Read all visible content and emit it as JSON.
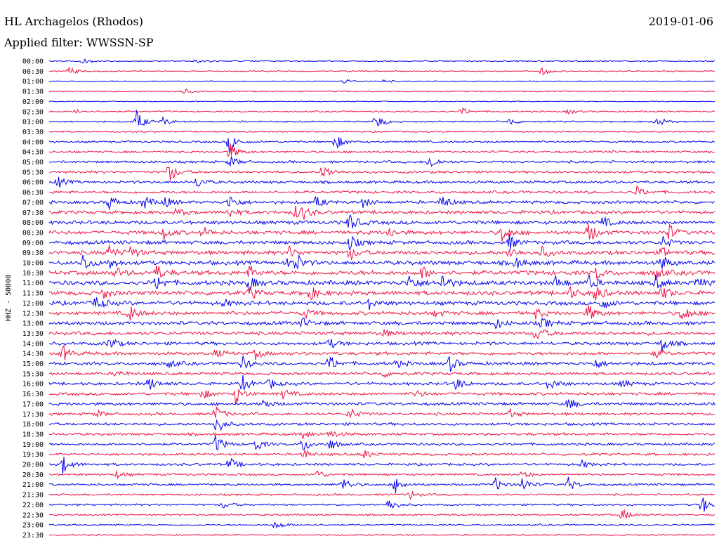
{
  "header": {
    "station": "HL Archagelos (Rhodos)",
    "date": "2019-01-06",
    "filter": "Applied filter: WWSSN-SP"
  },
  "chart_data": {
    "type": "line",
    "subtype": "helicorder",
    "ylabel": "HHZ - 50000",
    "xlabel": "",
    "grid": false,
    "legend": "none",
    "colors": [
      "#0000ee",
      "#ee1144"
    ],
    "rows": [
      "00:00",
      "00:30",
      "01:00",
      "01:30",
      "02:00",
      "02:30",
      "03:00",
      "03:30",
      "04:00",
      "04:30",
      "05:00",
      "05:30",
      "06:00",
      "06:30",
      "07:00",
      "07:30",
      "08:00",
      "08:30",
      "09:00",
      "09:30",
      "10:00",
      "10:30",
      "11:00",
      "11:30",
      "12:00",
      "12:30",
      "13:00",
      "13:30",
      "14:00",
      "14:30",
      "15:00",
      "15:30",
      "16:00",
      "16:30",
      "17:00",
      "17:30",
      "18:00",
      "18:30",
      "19:00",
      "19:30",
      "20:00",
      "20:30",
      "21:00",
      "21:30",
      "22:00",
      "22:30",
      "23:00",
      "23:30"
    ],
    "row_noise": [
      1,
      1,
      0.8,
      1,
      0.8,
      1.2,
      1.3,
      1.2,
      1.6,
      1.8,
      2,
      2,
      2.2,
      2.2,
      2.5,
      2.8,
      3,
      3,
      3,
      3.2,
      3.4,
      3.6,
      3.6,
      3.4,
      3.2,
      3,
      3,
      2.8,
      2.6,
      2.6,
      2.6,
      2.4,
      2.4,
      2.4,
      2.4,
      2.2,
      2.2,
      2.2,
      2,
      2,
      2,
      1.8,
      1.8,
      1.6,
      1.5,
      1.4,
      1.3,
      1.2
    ],
    "events": [
      {
        "row": 0,
        "t": 0.05,
        "amp": 4
      },
      {
        "row": 0,
        "t": 0.22,
        "amp": 3
      },
      {
        "row": 1,
        "t": 0.03,
        "amp": 6
      },
      {
        "row": 1,
        "t": 0.74,
        "amp": 6
      },
      {
        "row": 2,
        "t": 0.44,
        "amp": 5
      },
      {
        "row": 2,
        "t": 0.5,
        "amp": 3
      },
      {
        "row": 3,
        "t": 0.2,
        "amp": 5
      },
      {
        "row": 5,
        "t": 0.04,
        "amp": 5
      },
      {
        "row": 5,
        "t": 0.62,
        "amp": 6
      },
      {
        "row": 5,
        "t": 0.78,
        "amp": 4
      },
      {
        "row": 6,
        "t": 0.13,
        "amp": 18
      },
      {
        "row": 6,
        "t": 0.17,
        "amp": 6
      },
      {
        "row": 6,
        "t": 0.49,
        "amp": 12
      },
      {
        "row": 6,
        "t": 0.69,
        "amp": 7
      },
      {
        "row": 6,
        "t": 0.91,
        "amp": 10
      },
      {
        "row": 8,
        "t": 0.27,
        "amp": 16
      },
      {
        "row": 8,
        "t": 0.43,
        "amp": 12
      },
      {
        "row": 9,
        "t": 0.27,
        "amp": 14
      },
      {
        "row": 10,
        "t": 0.27,
        "amp": 10
      },
      {
        "row": 10,
        "t": 0.57,
        "amp": 12
      },
      {
        "row": 11,
        "t": 0.18,
        "amp": 16
      },
      {
        "row": 11,
        "t": 0.41,
        "amp": 14
      },
      {
        "row": 12,
        "t": 0.01,
        "amp": 10
      },
      {
        "row": 12,
        "t": 0.22,
        "amp": 10
      },
      {
        "row": 13,
        "t": 0.88,
        "amp": 10
      },
      {
        "row": 14,
        "t": 0.09,
        "amp": 10
      },
      {
        "row": 14,
        "t": 0.14,
        "amp": 12
      },
      {
        "row": 14,
        "t": 0.17,
        "amp": 10
      },
      {
        "row": 14,
        "t": 0.27,
        "amp": 12
      },
      {
        "row": 14,
        "t": 0.4,
        "amp": 10
      },
      {
        "row": 14,
        "t": 0.47,
        "amp": 8
      },
      {
        "row": 14,
        "t": 0.59,
        "amp": 12
      },
      {
        "row": 15,
        "t": 0.19,
        "amp": 8
      },
      {
        "row": 15,
        "t": 0.27,
        "amp": 8
      },
      {
        "row": 15,
        "t": 0.37,
        "amp": 10
      },
      {
        "row": 15,
        "t": 0.38,
        "amp": 8
      },
      {
        "row": 16,
        "t": 0.45,
        "amp": 16
      },
      {
        "row": 16,
        "t": 0.83,
        "amp": 8
      },
      {
        "row": 17,
        "t": 0.17,
        "amp": 12
      },
      {
        "row": 17,
        "t": 0.23,
        "amp": 8
      },
      {
        "row": 17,
        "t": 0.51,
        "amp": 8
      },
      {
        "row": 17,
        "t": 0.68,
        "amp": 14
      },
      {
        "row": 17,
        "t": 0.81,
        "amp": 16
      },
      {
        "row": 17,
        "t": 0.93,
        "amp": 12
      },
      {
        "row": 18,
        "t": 0.45,
        "amp": 12
      },
      {
        "row": 18,
        "t": 0.69,
        "amp": 12
      },
      {
        "row": 18,
        "t": 0.92,
        "amp": 10
      },
      {
        "row": 19,
        "t": 0.09,
        "amp": 10
      },
      {
        "row": 19,
        "t": 0.12,
        "amp": 12
      },
      {
        "row": 19,
        "t": 0.36,
        "amp": 8
      },
      {
        "row": 19,
        "t": 0.45,
        "amp": 12
      },
      {
        "row": 19,
        "t": 0.69,
        "amp": 10
      },
      {
        "row": 19,
        "t": 0.74,
        "amp": 8
      },
      {
        "row": 19,
        "t": 0.92,
        "amp": 8
      },
      {
        "row": 20,
        "t": 0.05,
        "amp": 14
      },
      {
        "row": 20,
        "t": 0.09,
        "amp": 8
      },
      {
        "row": 20,
        "t": 0.36,
        "amp": 12
      },
      {
        "row": 20,
        "t": 0.37,
        "amp": 10
      },
      {
        "row": 20,
        "t": 0.7,
        "amp": 10
      },
      {
        "row": 20,
        "t": 0.92,
        "amp": 10
      },
      {
        "row": 21,
        "t": 0.1,
        "amp": 8
      },
      {
        "row": 21,
        "t": 0.16,
        "amp": 12
      },
      {
        "row": 21,
        "t": 0.3,
        "amp": 10
      },
      {
        "row": 21,
        "t": 0.56,
        "amp": 10
      },
      {
        "row": 21,
        "t": 0.82,
        "amp": 10
      },
      {
        "row": 21,
        "t": 0.91,
        "amp": 10
      },
      {
        "row": 22,
        "t": 0.16,
        "amp": 12
      },
      {
        "row": 22,
        "t": 0.3,
        "amp": 10
      },
      {
        "row": 22,
        "t": 0.54,
        "amp": 14
      },
      {
        "row": 22,
        "t": 0.59,
        "amp": 14
      },
      {
        "row": 22,
        "t": 0.76,
        "amp": 10
      },
      {
        "row": 22,
        "t": 0.81,
        "amp": 10
      },
      {
        "row": 22,
        "t": 0.91,
        "amp": 10
      },
      {
        "row": 22,
        "t": 0.97,
        "amp": 10
      },
      {
        "row": 23,
        "t": 0.08,
        "amp": 8
      },
      {
        "row": 23,
        "t": 0.3,
        "amp": 10
      },
      {
        "row": 23,
        "t": 0.39,
        "amp": 12
      },
      {
        "row": 23,
        "t": 0.78,
        "amp": 10
      },
      {
        "row": 23,
        "t": 0.82,
        "amp": 14
      },
      {
        "row": 23,
        "t": 0.92,
        "amp": 10
      },
      {
        "row": 24,
        "t": 0.07,
        "amp": 12
      },
      {
        "row": 24,
        "t": 0.26,
        "amp": 6
      },
      {
        "row": 24,
        "t": 0.48,
        "amp": 8
      },
      {
        "row": 24,
        "t": 0.83,
        "amp": 10
      },
      {
        "row": 25,
        "t": 0.12,
        "amp": 12
      },
      {
        "row": 25,
        "t": 0.38,
        "amp": 10
      },
      {
        "row": 25,
        "t": 0.58,
        "amp": 6
      },
      {
        "row": 25,
        "t": 0.73,
        "amp": 8
      },
      {
        "row": 25,
        "t": 0.81,
        "amp": 12
      },
      {
        "row": 25,
        "t": 0.95,
        "amp": 14
      },
      {
        "row": 26,
        "t": 0.38,
        "amp": 8
      },
      {
        "row": 26,
        "t": 0.67,
        "amp": 8
      },
      {
        "row": 26,
        "t": 0.74,
        "amp": 8
      },
      {
        "row": 27,
        "t": 0.5,
        "amp": 6
      },
      {
        "row": 27,
        "t": 0.73,
        "amp": 14
      },
      {
        "row": 28,
        "t": 0.09,
        "amp": 10
      },
      {
        "row": 28,
        "t": 0.42,
        "amp": 8
      },
      {
        "row": 28,
        "t": 0.92,
        "amp": 12
      },
      {
        "row": 29,
        "t": 0.02,
        "amp": 12
      },
      {
        "row": 29,
        "t": 0.25,
        "amp": 6
      },
      {
        "row": 29,
        "t": 0.31,
        "amp": 8
      },
      {
        "row": 29,
        "t": 0.91,
        "amp": 8
      },
      {
        "row": 30,
        "t": 0.18,
        "amp": 6
      },
      {
        "row": 30,
        "t": 0.29,
        "amp": 10
      },
      {
        "row": 30,
        "t": 0.42,
        "amp": 12
      },
      {
        "row": 30,
        "t": 0.52,
        "amp": 6
      },
      {
        "row": 30,
        "t": 0.6,
        "amp": 14
      },
      {
        "row": 30,
        "t": 0.82,
        "amp": 8
      },
      {
        "row": 31,
        "t": 0.1,
        "amp": 6
      },
      {
        "row": 31,
        "t": 0.5,
        "amp": 6
      },
      {
        "row": 32,
        "t": 0.15,
        "amp": 10
      },
      {
        "row": 32,
        "t": 0.29,
        "amp": 12
      },
      {
        "row": 32,
        "t": 0.33,
        "amp": 8
      },
      {
        "row": 32,
        "t": 0.61,
        "amp": 10
      },
      {
        "row": 32,
        "t": 0.75,
        "amp": 12
      },
      {
        "row": 32,
        "t": 0.86,
        "amp": 6
      },
      {
        "row": 33,
        "t": 0.23,
        "amp": 8
      },
      {
        "row": 33,
        "t": 0.28,
        "amp": 14
      },
      {
        "row": 33,
        "t": 0.35,
        "amp": 8
      },
      {
        "row": 33,
        "t": 0.55,
        "amp": 6
      },
      {
        "row": 34,
        "t": 0.32,
        "amp": 8
      },
      {
        "row": 34,
        "t": 0.78,
        "amp": 10
      },
      {
        "row": 35,
        "t": 0.07,
        "amp": 6
      },
      {
        "row": 35,
        "t": 0.25,
        "amp": 12
      },
      {
        "row": 35,
        "t": 0.45,
        "amp": 10
      },
      {
        "row": 35,
        "t": 0.69,
        "amp": 8
      },
      {
        "row": 36,
        "t": 0.25,
        "amp": 16
      },
      {
        "row": 37,
        "t": 0.38,
        "amp": 8
      },
      {
        "row": 37,
        "t": 0.42,
        "amp": 8
      },
      {
        "row": 38,
        "t": 0.25,
        "amp": 14
      },
      {
        "row": 38,
        "t": 0.31,
        "amp": 10
      },
      {
        "row": 38,
        "t": 0.38,
        "amp": 12
      },
      {
        "row": 38,
        "t": 0.42,
        "amp": 10
      },
      {
        "row": 39,
        "t": 0.38,
        "amp": 8
      },
      {
        "row": 39,
        "t": 0.47,
        "amp": 8
      },
      {
        "row": 40,
        "t": 0.02,
        "amp": 14
      },
      {
        "row": 40,
        "t": 0.27,
        "amp": 10
      },
      {
        "row": 40,
        "t": 0.8,
        "amp": 6
      },
      {
        "row": 41,
        "t": 0.1,
        "amp": 6
      },
      {
        "row": 41,
        "t": 0.4,
        "amp": 8
      },
      {
        "row": 41,
        "t": 0.71,
        "amp": 6
      },
      {
        "row": 42,
        "t": 0.44,
        "amp": 12
      },
      {
        "row": 42,
        "t": 0.52,
        "amp": 12
      },
      {
        "row": 42,
        "t": 0.67,
        "amp": 10
      },
      {
        "row": 42,
        "t": 0.71,
        "amp": 12
      },
      {
        "row": 42,
        "t": 0.78,
        "amp": 10
      },
      {
        "row": 43,
        "t": 0.54,
        "amp": 8
      },
      {
        "row": 44,
        "t": 0.26,
        "amp": 6
      },
      {
        "row": 44,
        "t": 0.51,
        "amp": 12
      },
      {
        "row": 44,
        "t": 0.98,
        "amp": 14
      },
      {
        "row": 45,
        "t": 0.86,
        "amp": 10
      },
      {
        "row": 46,
        "t": 0.34,
        "amp": 8
      }
    ]
  }
}
